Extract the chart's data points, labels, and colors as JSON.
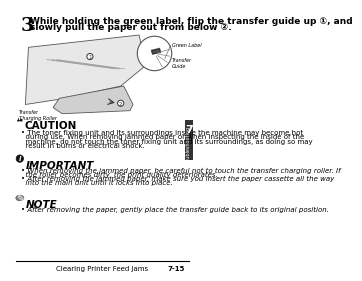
{
  "bg_color": "#ffffff",
  "step_number": "3",
  "step_text_line1": "While holding the green label, flip the transfer guide up ①, and",
  "step_text_line2": "slowly pull the paper out from below ②.",
  "green_label_text": "Green Label",
  "transfer_guide_text": "Transfer\nGuide",
  "transfer_charging_roller_text": "Transfer\nCharging Roller",
  "caution_title": "CAUTION",
  "caution_lines": [
    "• The toner fixing unit and its surroundings inside the machine may become hot",
    "  during use. When removing jammed paper or when inspecting the inside of the",
    "  machine, do not touch the toner fixing unit and its surroundings, as doing so may",
    "  result in burns or electrical shock."
  ],
  "important_title": "IMPORTANT",
  "important_lines": [
    "• When removing the jammed paper, be careful not to touch the transfer charging roller. If",
    "  the roller becomes dirty, the print quality deteriorates.",
    "• After removing the jammed paper, make sure you insert the paper cassette all the way",
    "  into the main unit until it locks into place."
  ],
  "note_title": "NOTE",
  "note_lines": [
    "• After removing the paper, gently place the transfer guide back to its original position."
  ],
  "footer_left": "Clearing Printer Feed Jams",
  "footer_right": "7-15",
  "tab_label": "7",
  "tab_sublabel": "Troubleshooting",
  "text_color": "#000000",
  "body_font_size": 5.0,
  "title_font_size": 7.5,
  "step_font_size": 6.5
}
